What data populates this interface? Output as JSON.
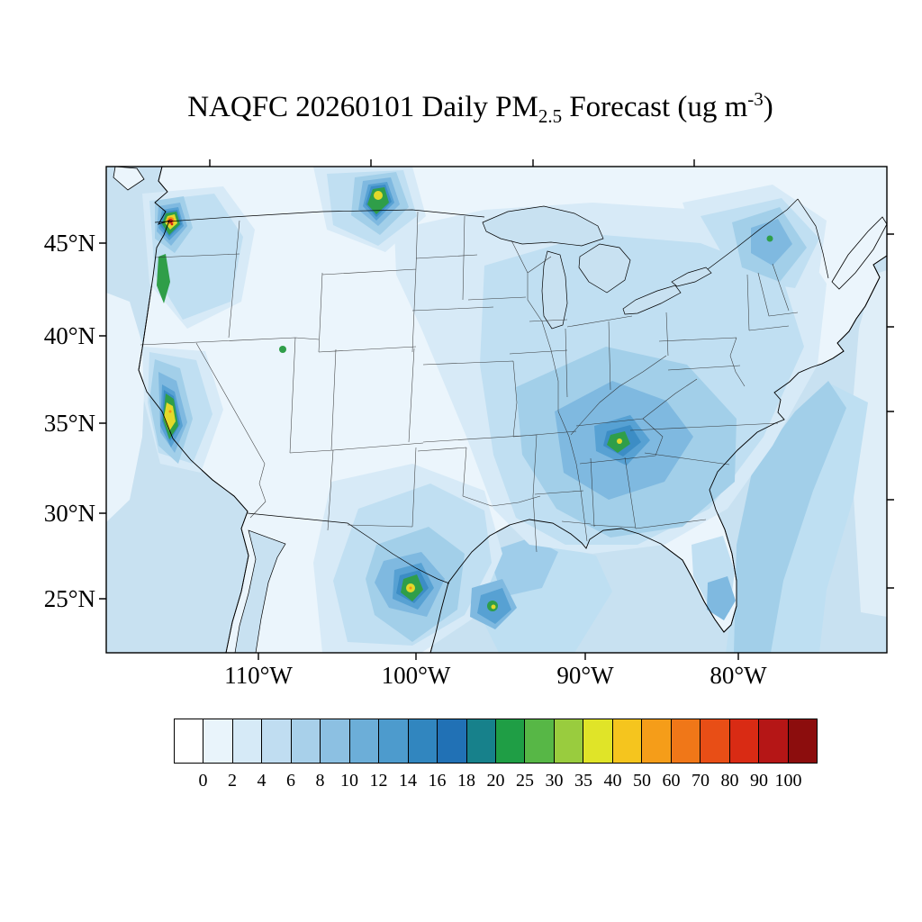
{
  "title": {
    "prefix": "NAQFC 20260101 Daily PM",
    "subscript": "2.5",
    "middle": " Forecast (ug m",
    "superscript": "-3",
    "suffix": ")"
  },
  "axes": {
    "latitude_labels": [
      "45°N",
      "40°N",
      "35°N",
      "30°N",
      "25°N"
    ],
    "longitude_labels": [
      "110°W",
      "100°W",
      "90°W",
      "80°W"
    ]
  },
  "colorbar": {
    "tick_labels": [
      "0",
      "2",
      "4",
      "6",
      "8",
      "10",
      "12",
      "14",
      "16",
      "18",
      "20",
      "25",
      "30",
      "35",
      "40",
      "50",
      "60",
      "70",
      "80",
      "90",
      "100"
    ],
    "cell_colors": [
      "#ffffff",
      "#e9f4fb",
      "#d6eaf7",
      "#c0ddf1",
      "#a8d0ea",
      "#8cc0e2",
      "#6caed8",
      "#4d9bcd",
      "#3186bf",
      "#2171b5",
      "#17818b",
      "#1f9e45",
      "#57b746",
      "#99cc3e",
      "#e0e428",
      "#f5c51e",
      "#f59d19",
      "#f07718",
      "#e84e16",
      "#d92b14",
      "#b51616",
      "#8c0d0d"
    ]
  },
  "map": {
    "depicted_field": "Daily PM2.5 concentration, filled contours over the continental United States",
    "background_range": "0-6 over most of the domain",
    "elevated_band": "Southeast / Mississippi and Tennessee valleys around 6-14",
    "hotspots": [
      "Puget Sound, western Washington (highest, into red)",
      "Willamette Valley, Oregon",
      "Central Valley, northern California",
      "Western Montana / border area",
      "Salt Lake area, Utah (small green dot)",
      "Southern Appalachians, Tennessee-Georgia (small green-yellow spot)",
      "Northeast US / southeast Canada (small green fleck)",
      "Northern Mexico, two yellow-green spots"
    ]
  }
}
